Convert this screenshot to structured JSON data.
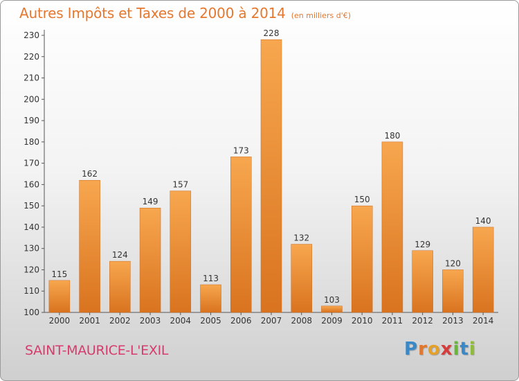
{
  "header": {
    "title": "Autres Impôts et Taxes de 2000 à 2014",
    "subtitle": "(en milliers d'€)"
  },
  "footer": {
    "city": "SAINT-MAURICE-L'EXIL",
    "logo_letters": [
      "P",
      "r",
      "o",
      "x",
      "i",
      "t",
      "i"
    ],
    "logo_colors": [
      "#3b88c7",
      "#e2772c",
      "#e5a02a",
      "#d63c3c",
      "#67b53b",
      "#3b88c7",
      "#8fbd3b"
    ]
  },
  "colors": {
    "bar_light": "#f7a74f",
    "bar_dark": "#d9731f",
    "text": "#333333",
    "grid": "#bfbfbf",
    "accent": "#e5772e"
  },
  "chart_data": {
    "type": "bar",
    "categories": [
      "2000",
      "2001",
      "2002",
      "2003",
      "2004",
      "2005",
      "2006",
      "2007",
      "2008",
      "2009",
      "2010",
      "2011",
      "2012",
      "2013",
      "2014"
    ],
    "values": [
      115,
      162,
      124,
      149,
      157,
      113,
      173,
      228,
      132,
      103,
      150,
      180,
      129,
      120,
      140
    ],
    "ylim": [
      100,
      230
    ],
    "yticks": [
      100,
      110,
      120,
      130,
      140,
      150,
      160,
      170,
      180,
      190,
      200,
      210,
      220,
      230
    ],
    "grid": false,
    "data_labels": true
  }
}
